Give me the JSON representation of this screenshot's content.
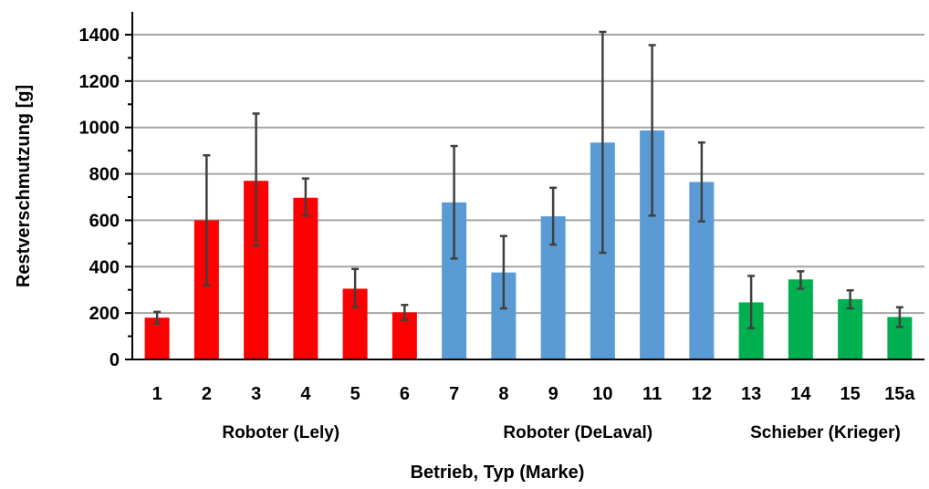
{
  "chart_data": {
    "type": "bar",
    "xlabel": "Betrieb, Typ (Marke)",
    "ylabel": "Restverschmutzung [g]",
    "ylim": [
      0,
      1400
    ],
    "yticks": [
      0,
      200,
      400,
      600,
      800,
      1000,
      1200,
      1400
    ],
    "grid": true,
    "categories": [
      "1",
      "2",
      "3",
      "4",
      "5",
      "6",
      "7",
      "8",
      "9",
      "10",
      "11",
      "12",
      "13",
      "14",
      "15",
      "15a"
    ],
    "values": [
      180,
      600,
      770,
      697,
      305,
      203,
      677,
      375,
      617,
      935,
      987,
      765,
      246,
      345,
      260,
      183
    ],
    "error_low": [
      155,
      320,
      490,
      620,
      225,
      170,
      435,
      220,
      495,
      460,
      620,
      595,
      135,
      305,
      220,
      140
    ],
    "error_high": [
      205,
      880,
      1060,
      780,
      390,
      235,
      920,
      532,
      740,
      1412,
      1355,
      935,
      360,
      380,
      298,
      225
    ],
    "groups": [
      {
        "label": "Roboter (Lely)",
        "start": 0,
        "end": 5,
        "color": "#ff0000"
      },
      {
        "label": "Roboter (DeLaval)",
        "start": 6,
        "end": 11,
        "color": "#5b9bd5"
      },
      {
        "label": "Schieber (Krieger)",
        "start": 12,
        "end": 15,
        "color": "#00b050"
      }
    ],
    "colors": {
      "gridline": "#a6a6a6",
      "errorbar": "#404040",
      "axis": "#000000"
    }
  }
}
